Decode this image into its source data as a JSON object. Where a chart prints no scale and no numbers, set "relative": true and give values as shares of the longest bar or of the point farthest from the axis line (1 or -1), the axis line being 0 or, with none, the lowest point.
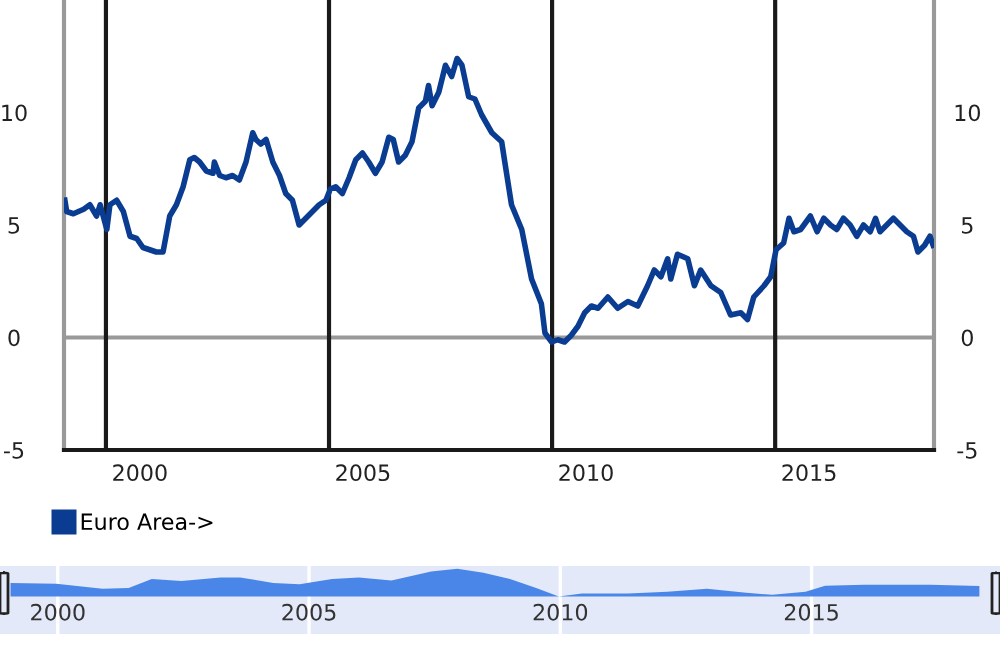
{
  "chart_data": [
    {
      "type": "line",
      "legend": "bottom",
      "grid": false,
      "marker": "none",
      "line_style": "solid",
      "xlim": [
        1998.3,
        2017.8
      ],
      "xticks": [
        2000,
        2005,
        2010,
        2015
      ],
      "ylim": [
        -5,
        15
      ],
      "yticks": [
        -5,
        0,
        5,
        10
      ],
      "y2lim": [
        -5,
        15
      ],
      "y2ticks": [
        -5,
        0,
        5,
        10
      ],
      "ref_lines": [
        {
          "axis": "y",
          "value": 0,
          "color": "#999999"
        },
        {
          "axis": "x",
          "value": 1999.24,
          "color": "#1a1a1a"
        },
        {
          "axis": "x",
          "value": 2004.24,
          "color": "#1a1a1a"
        },
        {
          "axis": "x",
          "value": 2009.24,
          "color": "#1a1a1a"
        },
        {
          "axis": "x",
          "value": 2014.24,
          "color": "#1a1a1a"
        }
      ],
      "series": [
        {
          "name": "Euro Area->",
          "color": "#0a3d91",
          "x": [
            1998.32,
            1998.36,
            1998.51,
            1998.74,
            1998.88,
            1999.03,
            1999.11,
            1999.26,
            1999.33,
            1999.48,
            1999.63,
            1999.78,
            1999.93,
            2000.07,
            2000.22,
            2000.37,
            2000.52,
            2000.67,
            2000.82,
            2000.97,
            2001.12,
            2001.22,
            2001.34,
            2001.49,
            2001.64,
            2001.67,
            2001.79,
            2001.93,
            2002.08,
            2002.23,
            2002.38,
            2002.53,
            2002.6,
            2002.71,
            2002.83,
            2002.98,
            2003.13,
            2003.27,
            2003.42,
            2003.57,
            2003.72,
            2003.87,
            2004.02,
            2004.17,
            2004.27,
            2004.39,
            2004.54,
            2004.69,
            2004.84,
            2004.99,
            2005.13,
            2005.28,
            2005.43,
            2005.58,
            2005.68,
            2005.8,
            2005.95,
            2006.1,
            2006.25,
            2006.4,
            2006.47,
            2006.55,
            2006.7,
            2006.85,
            2006.99,
            2007.11,
            2007.22,
            2007.37,
            2007.51,
            2007.66,
            2007.89,
            2008.11,
            2008.18,
            2008.33,
            2008.56,
            2008.78,
            2009.0,
            2009.08,
            2009.23,
            2009.37,
            2009.52,
            2009.67,
            2009.82,
            2009.97,
            2010.12,
            2010.27,
            2010.49,
            2010.71,
            2010.94,
            2011.16,
            2011.38,
            2011.53,
            2011.68,
            2011.83,
            2011.9,
            2012.05,
            2012.28,
            2012.43,
            2012.57,
            2012.8,
            2013.02,
            2013.24,
            2013.47,
            2013.62,
            2013.76,
            2013.99,
            2014.14,
            2014.26,
            2014.43,
            2014.55,
            2014.66,
            2014.81,
            2015.03,
            2015.18,
            2015.33,
            2015.48,
            2015.62,
            2015.77,
            2015.92,
            2016.07,
            2016.22,
            2016.37,
            2016.49,
            2016.59,
            2016.74,
            2016.89,
            2017.04,
            2017.19,
            2017.34,
            2017.44,
            2017.59,
            2017.71,
            2017.78
          ],
          "values": [
            6.1,
            5.6,
            5.5,
            5.7,
            5.9,
            5.4,
            5.9,
            4.8,
            5.9,
            6.1,
            5.6,
            4.5,
            4.4,
            4.0,
            3.9,
            3.8,
            3.8,
            5.4,
            5.9,
            6.7,
            7.9,
            8.0,
            7.8,
            7.4,
            7.3,
            7.8,
            7.2,
            7.1,
            7.2,
            7.0,
            7.8,
            9.1,
            8.8,
            8.6,
            8.8,
            7.8,
            7.2,
            6.4,
            6.1,
            5.0,
            5.3,
            5.6,
            5.9,
            6.1,
            6.6,
            6.7,
            6.4,
            7.1,
            7.9,
            8.2,
            7.8,
            7.3,
            7.8,
            8.9,
            8.8,
            7.8,
            8.1,
            8.7,
            10.2,
            10.5,
            11.2,
            10.3,
            10.9,
            12.1,
            11.6,
            12.4,
            12.1,
            10.7,
            10.6,
            9.9,
            9.1,
            8.7,
            7.8,
            5.9,
            4.8,
            2.6,
            1.5,
            0.2,
            -0.2,
            -0.1,
            -0.2,
            0.1,
            0.5,
            1.1,
            1.4,
            1.3,
            1.8,
            1.3,
            1.6,
            1.4,
            2.3,
            3.0,
            2.7,
            3.5,
            2.6,
            3.7,
            3.5,
            2.3,
            3.0,
            2.3,
            2.0,
            1.0,
            1.1,
            0.8,
            1.8,
            2.3,
            2.7,
            3.9,
            4.2,
            5.3,
            4.7,
            4.8,
            5.4,
            4.7,
            5.3,
            5.0,
            4.8,
            5.3,
            5.0,
            4.5,
            5.0,
            4.7,
            5.3,
            4.7,
            5.0,
            5.3,
            5.0,
            4.7,
            4.5,
            3.8,
            4.1,
            4.5,
            4.1
          ]
        }
      ]
    },
    {
      "type": "area",
      "relative": true,
      "grid": "x",
      "xlim": [
        1998.85,
        2018.75
      ],
      "xticks": [
        2000,
        2005,
        2010,
        2015
      ],
      "series": [
        {
          "color": "#4a86e8",
          "x": [
            1999.06,
            1999.97,
            2000.89,
            2001.41,
            2001.87,
            2002.46,
            2003.24,
            2003.63,
            2004.29,
            2004.81,
            2005.46,
            2005.99,
            2006.64,
            2007.43,
            2007.95,
            2008.47,
            2009.0,
            2009.52,
            2009.97,
            2010.43,
            2011.35,
            2012.13,
            2012.92,
            2013.7,
            2014.22,
            2014.88,
            2015.27,
            2016.05,
            2017.36,
            2018.34
          ],
          "values": [
            0.49,
            0.46,
            0.28,
            0.31,
            0.63,
            0.56,
            0.69,
            0.69,
            0.49,
            0.44,
            0.63,
            0.69,
            0.58,
            0.9,
            1.0,
            0.86,
            0.63,
            0.31,
            0,
            0.11,
            0.11,
            0.17,
            0.28,
            0.14,
            0.06,
            0.17,
            0.39,
            0.42,
            0.42,
            0.38
          ]
        }
      ]
    }
  ]
}
